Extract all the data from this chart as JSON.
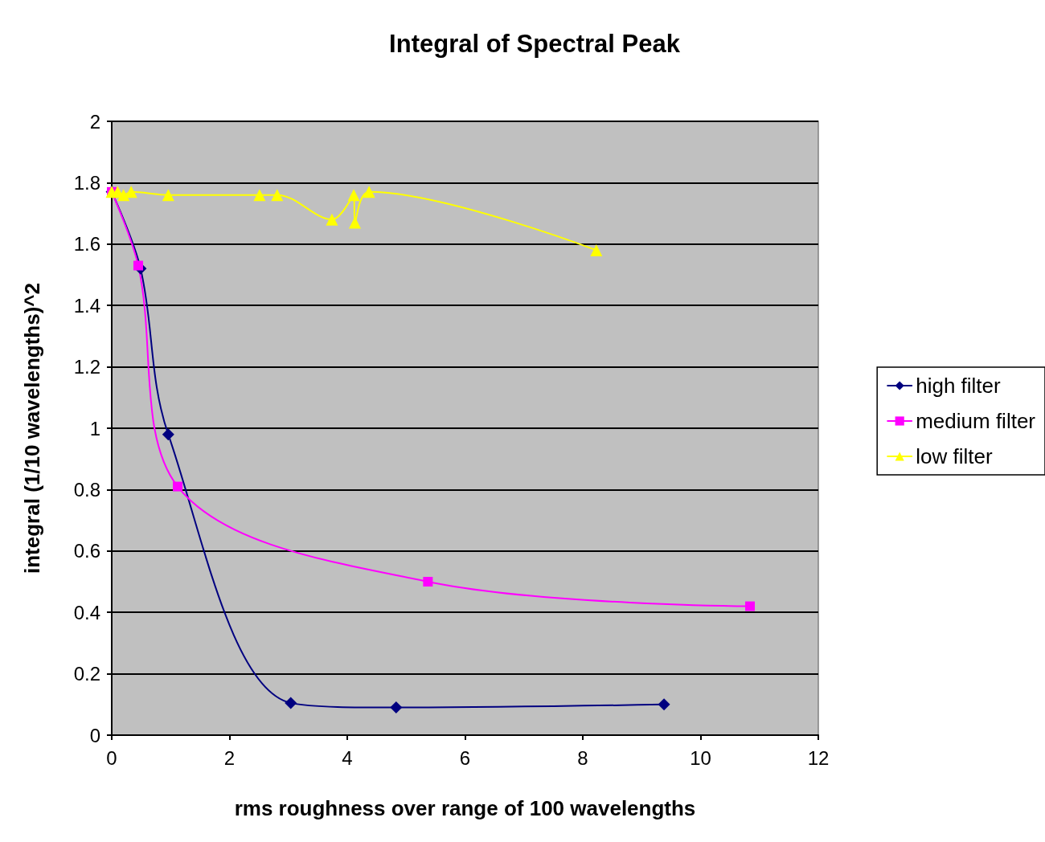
{
  "chart_data": {
    "type": "line",
    "title": "Integral of Spectral Peak",
    "xlabel": "rms roughness over range of 100 wavelengths",
    "ylabel": "integral (1/10 wavelengths)^2",
    "xlim": [
      0,
      12
    ],
    "xticks": [
      0,
      2,
      4,
      6,
      8,
      10,
      12
    ],
    "ylim": [
      0,
      2
    ],
    "yticks": [
      0,
      0.2,
      0.4,
      0.6,
      0.8,
      1,
      1.2,
      1.4,
      1.6,
      1.8,
      2
    ],
    "grid": "y",
    "legend": "right",
    "series": [
      {
        "name": "high filter",
        "color": "#000080",
        "marker": "diamond",
        "x": [
          0,
          0.49,
          0.96,
          3.04,
          4.83,
          9.38
        ],
        "values": [
          1.77,
          1.52,
          0.98,
          0.105,
          0.09,
          0.1
        ]
      },
      {
        "name": "medium filter",
        "color": "#ff00ff",
        "marker": "square",
        "x": [
          0,
          0.45,
          1.12,
          5.37,
          10.84
        ],
        "values": [
          1.77,
          1.53,
          0.81,
          0.5,
          0.42
        ]
      },
      {
        "name": "low filter",
        "color": "#ffff00",
        "marker": "triangle",
        "x": [
          0,
          0.1,
          0.2,
          0.33,
          0.96,
          2.51,
          2.81,
          3.74,
          4.11,
          4.13,
          4.37,
          8.23
        ],
        "values": [
          1.77,
          1.77,
          1.76,
          1.77,
          1.76,
          1.76,
          1.76,
          1.68,
          1.76,
          1.67,
          1.77,
          1.58
        ]
      }
    ]
  }
}
